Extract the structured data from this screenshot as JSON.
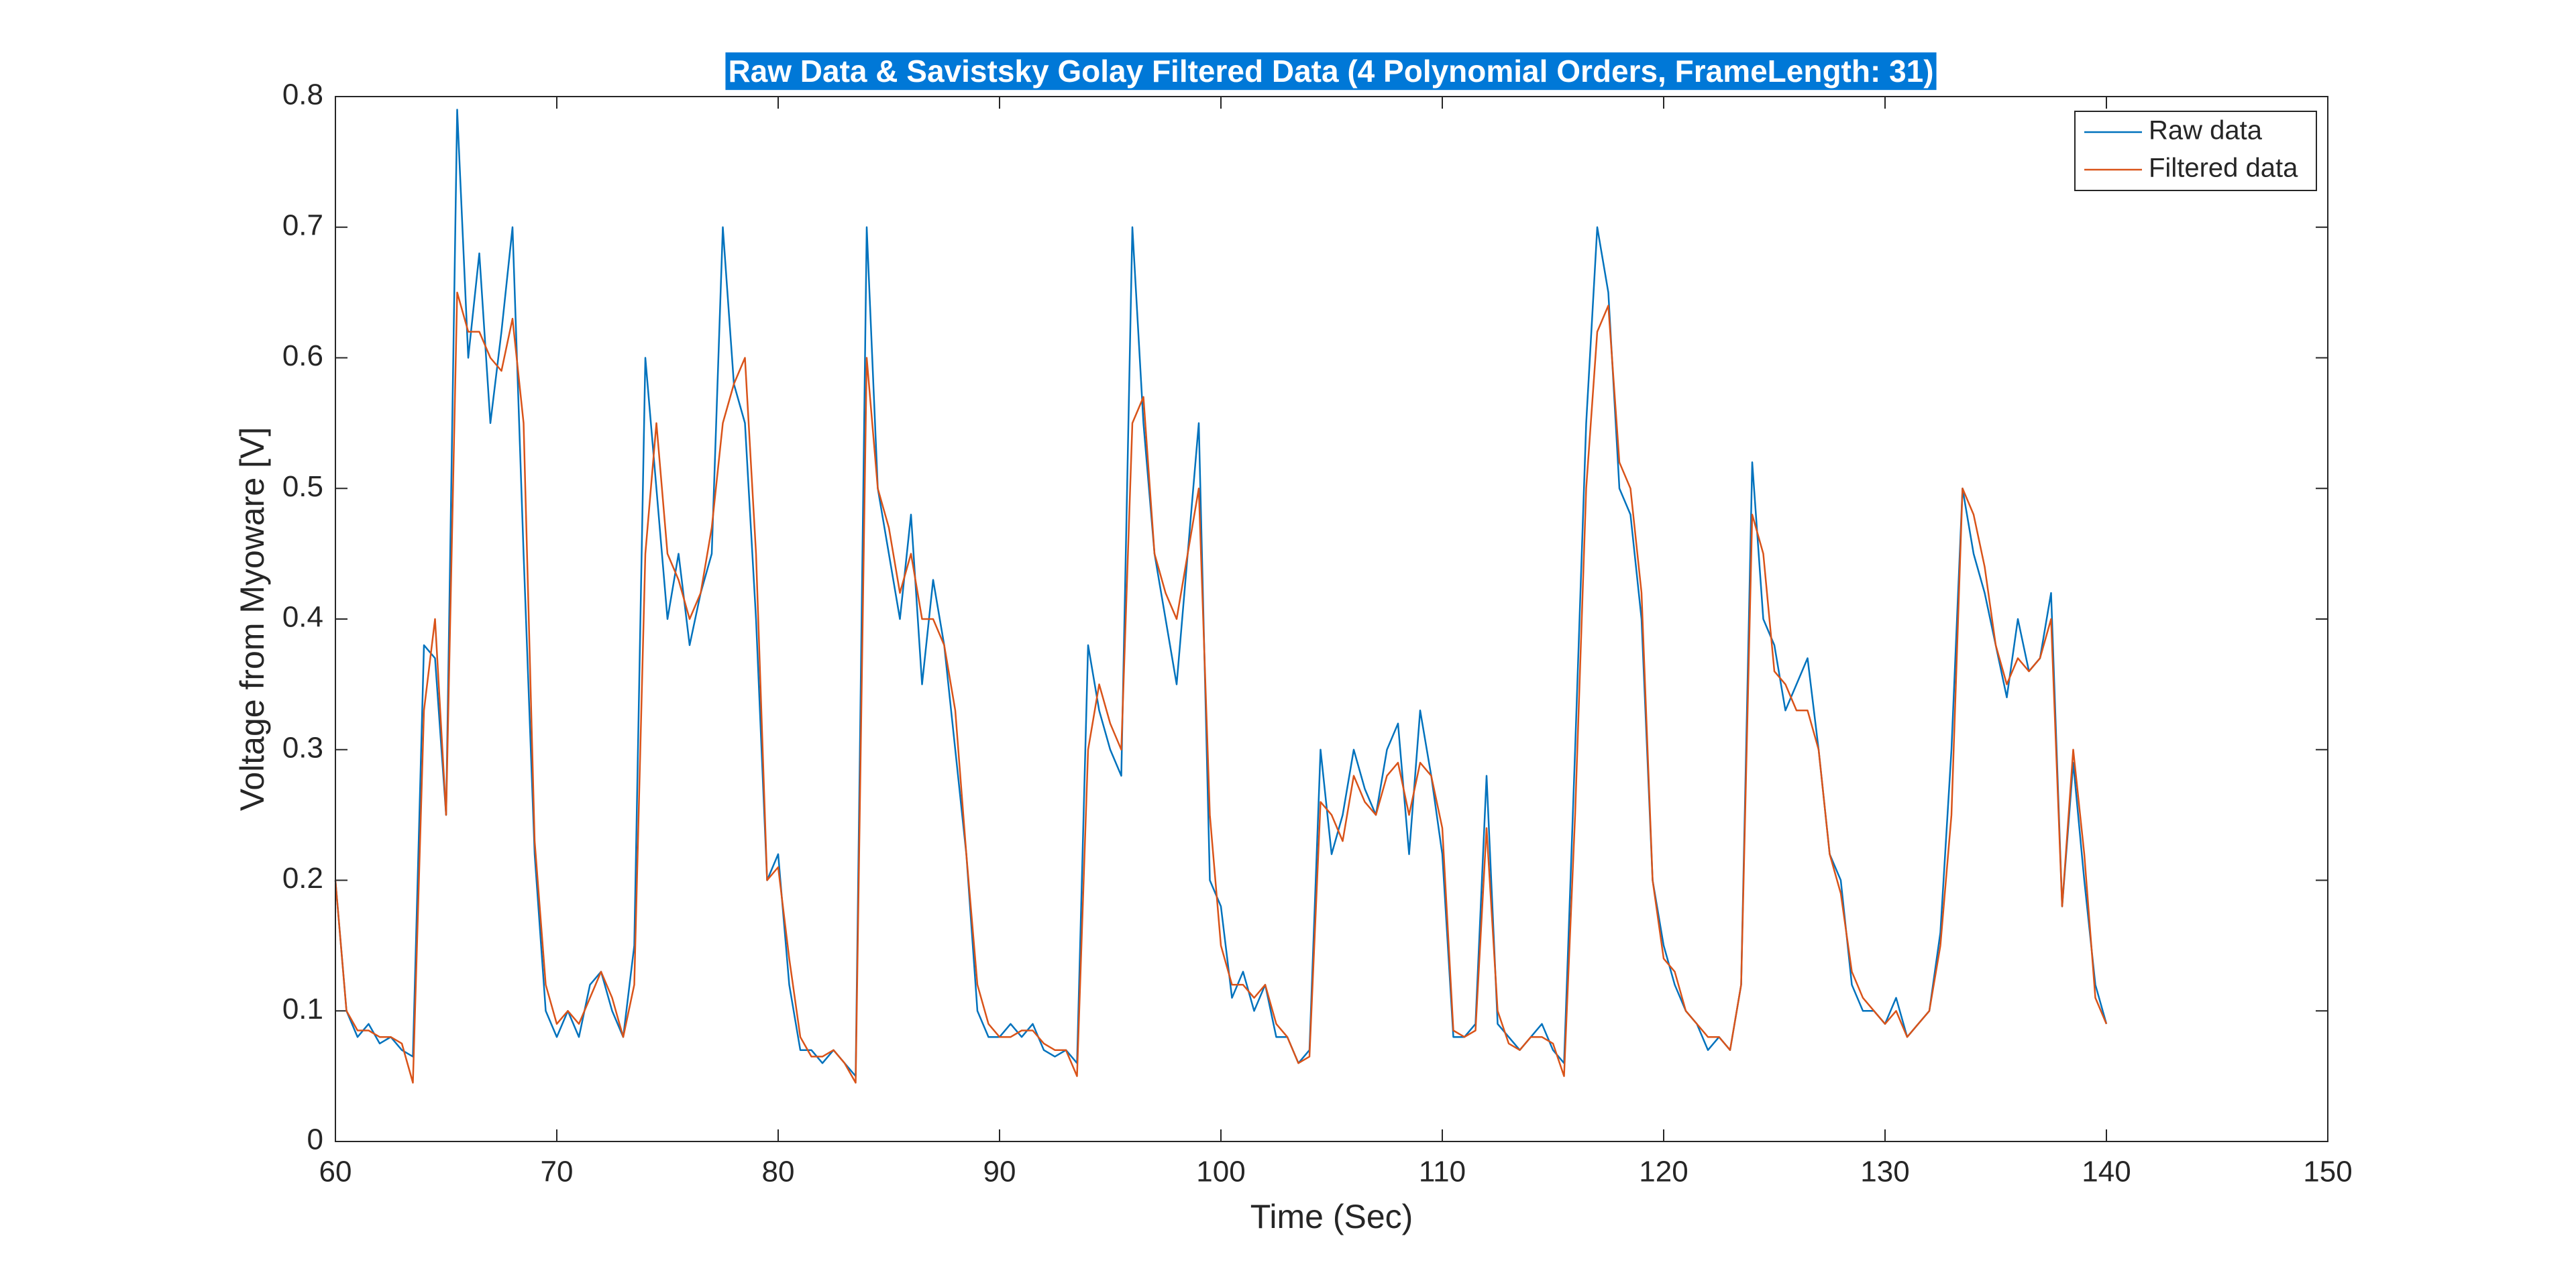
{
  "chart_data": {
    "type": "line",
    "title": "Raw Data & Savistsky Golay Filtered Data (4 Polynomial Orders, FrameLength: 31)",
    "xlabel": "Time (Sec)",
    "ylabel": "Voltage from Myoware [V]",
    "x": [
      60,
      60.5,
      61,
      61.5,
      62,
      62.5,
      63,
      63.5,
      64,
      64.5,
      65,
      65.5,
      66,
      66.5,
      67,
      67.5,
      68,
      68.5,
      69,
      69.5,
      70,
      70.5,
      71,
      71.5,
      72,
      72.5,
      73,
      73.5,
      74,
      74.5,
      75,
      75.5,
      76,
      76.5,
      77,
      77.5,
      78,
      78.5,
      79,
      79.5,
      80,
      80.5,
      81,
      81.5,
      82,
      82.5,
      83,
      83.5,
      84,
      84.5,
      85,
      85.5,
      86,
      86.5,
      87,
      87.5,
      88,
      88.5,
      89,
      89.5,
      90,
      90.5,
      91,
      91.5,
      92,
      92.5,
      93,
      93.5,
      94,
      94.5,
      95,
      95.5,
      96,
      96.5,
      97,
      97.5,
      98,
      98.5,
      99,
      99.5,
      100,
      100.5,
      101,
      101.5,
      102,
      102.5,
      103,
      103.5,
      104,
      104.5,
      105,
      105.5,
      106,
      106.5,
      107,
      107.5,
      108,
      108.5,
      109,
      109.5,
      110,
      110.5,
      111,
      111.5,
      112,
      112.5,
      113,
      113.5,
      114,
      114.5,
      115,
      115.5,
      116,
      116.5,
      117,
      117.5,
      118,
      118.5,
      119,
      119.5,
      120,
      120.5,
      121,
      121.5,
      122,
      122.5,
      123,
      123.5,
      124,
      124.5,
      125,
      125.5,
      126,
      126.5,
      127,
      127.5,
      128,
      128.5,
      129,
      129.5,
      130,
      130.5,
      131,
      131.5,
      132,
      132.5,
      133,
      133.5,
      134,
      134.5,
      135,
      135.5,
      136,
      136.5,
      137,
      137.5,
      138,
      138.5,
      139,
      139.5,
      140
    ],
    "series": [
      {
        "name": "Raw data",
        "color": "#0072bd",
        "values": [
          0.2,
          0.1,
          0.08,
          0.09,
          0.075,
          0.08,
          0.07,
          0.065,
          0.38,
          0.37,
          0.25,
          0.79,
          0.6,
          0.68,
          0.55,
          0.62,
          0.7,
          0.45,
          0.22,
          0.1,
          0.08,
          0.1,
          0.08,
          0.12,
          0.13,
          0.1,
          0.08,
          0.15,
          0.6,
          0.5,
          0.4,
          0.45,
          0.38,
          0.42,
          0.45,
          0.7,
          0.58,
          0.55,
          0.4,
          0.2,
          0.22,
          0.12,
          0.07,
          0.07,
          0.06,
          0.07,
          0.06,
          0.05,
          0.7,
          0.5,
          0.45,
          0.4,
          0.48,
          0.35,
          0.43,
          0.38,
          0.3,
          0.22,
          0.1,
          0.08,
          0.08,
          0.09,
          0.08,
          0.09,
          0.07,
          0.065,
          0.07,
          0.06,
          0.38,
          0.33,
          0.3,
          0.28,
          0.7,
          0.55,
          0.45,
          0.4,
          0.35,
          0.45,
          0.55,
          0.2,
          0.18,
          0.11,
          0.13,
          0.1,
          0.12,
          0.08,
          0.08,
          0.06,
          0.07,
          0.3,
          0.22,
          0.25,
          0.3,
          0.27,
          0.25,
          0.3,
          0.32,
          0.22,
          0.33,
          0.28,
          0.22,
          0.08,
          0.08,
          0.09,
          0.28,
          0.09,
          0.08,
          0.07,
          0.08,
          0.09,
          0.07,
          0.06,
          0.3,
          0.55,
          0.7,
          0.65,
          0.5,
          0.48,
          0.4,
          0.2,
          0.15,
          0.12,
          0.1,
          0.09,
          0.07,
          0.08,
          0.07,
          0.12,
          0.52,
          0.4,
          0.38,
          0.33,
          0.35,
          0.37,
          0.3,
          0.22,
          0.2,
          0.12,
          0.1,
          0.1,
          0.09,
          0.11,
          0.08,
          0.09,
          0.1,
          0.16,
          0.3,
          0.5,
          0.45,
          0.42,
          0.38,
          0.34,
          0.4,
          0.36,
          0.37,
          0.42,
          0.18,
          0.29,
          0.2,
          0.12,
          0.09
        ]
      },
      {
        "name": "Filtered data",
        "color": "#d95319",
        "values": [
          0.2,
          0.1,
          0.085,
          0.085,
          0.08,
          0.08,
          0.075,
          0.045,
          0.33,
          0.4,
          0.25,
          0.65,
          0.62,
          0.62,
          0.6,
          0.59,
          0.63,
          0.55,
          0.23,
          0.12,
          0.09,
          0.1,
          0.09,
          0.11,
          0.13,
          0.11,
          0.08,
          0.12,
          0.45,
          0.55,
          0.45,
          0.43,
          0.4,
          0.42,
          0.47,
          0.55,
          0.58,
          0.6,
          0.45,
          0.2,
          0.21,
          0.14,
          0.08,
          0.065,
          0.065,
          0.07,
          0.06,
          0.045,
          0.6,
          0.5,
          0.47,
          0.42,
          0.45,
          0.4,
          0.4,
          0.38,
          0.33,
          0.22,
          0.12,
          0.09,
          0.08,
          0.08,
          0.085,
          0.085,
          0.075,
          0.07,
          0.07,
          0.05,
          0.3,
          0.35,
          0.32,
          0.3,
          0.55,
          0.57,
          0.45,
          0.42,
          0.4,
          0.45,
          0.5,
          0.25,
          0.15,
          0.12,
          0.12,
          0.11,
          0.12,
          0.09,
          0.08,
          0.06,
          0.065,
          0.26,
          0.25,
          0.23,
          0.28,
          0.26,
          0.25,
          0.28,
          0.29,
          0.25,
          0.29,
          0.28,
          0.24,
          0.085,
          0.08,
          0.085,
          0.24,
          0.1,
          0.075,
          0.07,
          0.08,
          0.08,
          0.075,
          0.05,
          0.25,
          0.5,
          0.62,
          0.64,
          0.52,
          0.5,
          0.42,
          0.2,
          0.14,
          0.13,
          0.1,
          0.09,
          0.08,
          0.08,
          0.07,
          0.12,
          0.48,
          0.45,
          0.36,
          0.35,
          0.33,
          0.33,
          0.3,
          0.22,
          0.19,
          0.13,
          0.11,
          0.1,
          0.09,
          0.1,
          0.08,
          0.09,
          0.1,
          0.15,
          0.25,
          0.5,
          0.48,
          0.44,
          0.38,
          0.35,
          0.37,
          0.36,
          0.37,
          0.4,
          0.18,
          0.3,
          0.22,
          0.11,
          0.09
        ]
      }
    ],
    "xlim": [
      60,
      150
    ],
    "xticks": [
      60,
      70,
      80,
      90,
      100,
      110,
      120,
      130,
      140,
      150
    ],
    "ylim": [
      0,
      0.8
    ],
    "yticks": [
      0,
      0.1,
      0.2,
      0.3,
      0.4,
      0.5,
      0.6,
      0.7,
      0.8
    ],
    "grid": false,
    "legend": "northeast"
  }
}
